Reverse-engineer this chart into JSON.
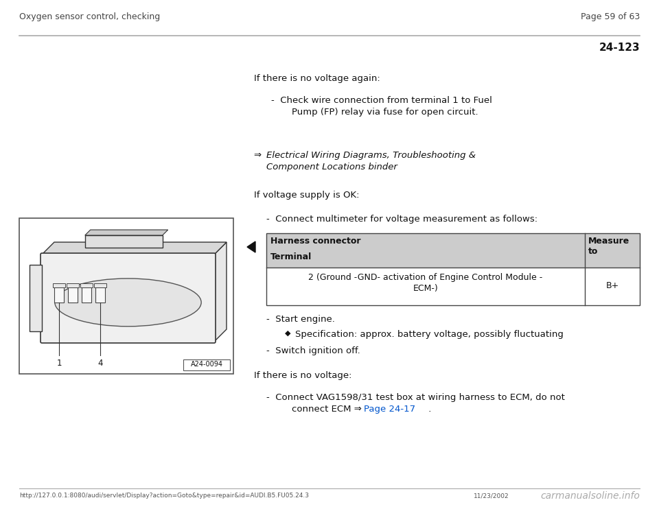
{
  "bg_color": "#ffffff",
  "header_left": "Oxygen sensor control, checking",
  "header_right": "Page 59 of 63",
  "section_number": "24-123",
  "footer_url": "http://127.0.0.1:8080/audi/servlet/Display?action=Goto&type=repair&id=AUDI.B5.FU05.24.3",
  "footer_date": "11/23/2002",
  "footer_logo": "carmanualsoline.info",
  "text_color": "#111111",
  "header_color": "#555555",
  "line_color": "#999999"
}
